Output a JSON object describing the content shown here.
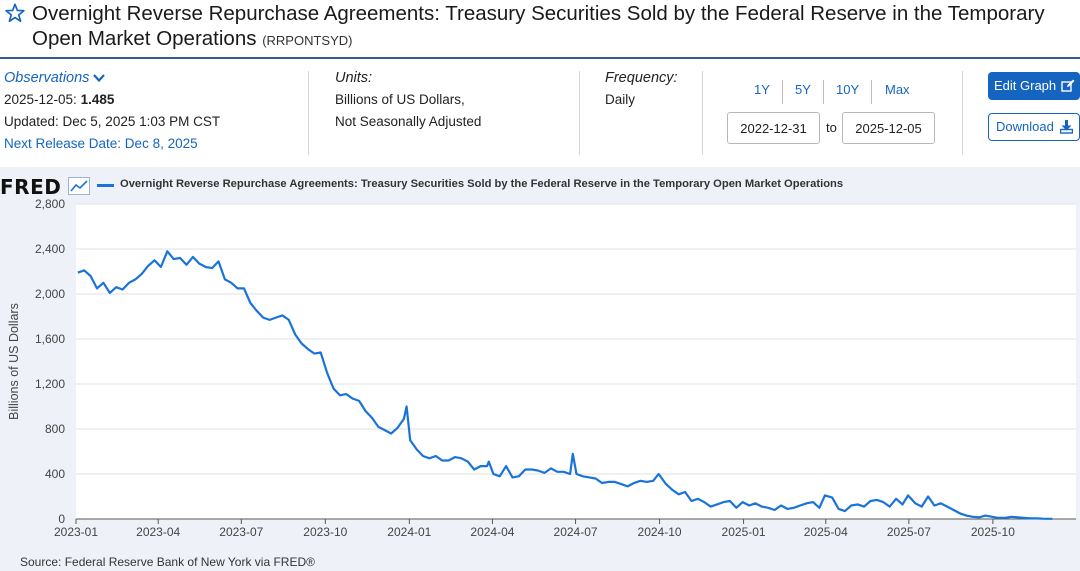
{
  "header": {
    "title": "Overnight Reverse Repurchase Agreements: Treasury Securities Sold by the Federal Reserve in the Temporary Open Market Operations",
    "series_id": "(RRPONTSYD)"
  },
  "observations": {
    "label": "Observations",
    "date": "2025-12-05:",
    "value": "1.485",
    "updated": "Updated: Dec 5, 2025 1:03 PM CST",
    "next_release": "Next Release Date: Dec 8, 2025"
  },
  "units": {
    "label": "Units:",
    "line1": "Billions of US Dollars,",
    "line2": "Not Seasonally Adjusted"
  },
  "frequency": {
    "label": "Frequency:",
    "value": "Daily"
  },
  "range": {
    "buttons": [
      "1Y",
      "5Y",
      "10Y",
      "Max"
    ],
    "start": "2022-12-31",
    "to": "to",
    "end": "2025-12-05"
  },
  "actions": {
    "edit_graph": "Edit Graph",
    "download": "Download"
  },
  "colors": {
    "accent": "#1565c0",
    "series_line": "#1a73d9",
    "plot_bg": "#ffffff",
    "panel_bg": "#eef2f8"
  },
  "logo": "FRED",
  "source": "Source: Federal Reserve Bank of New York via FRED®",
  "chart_data": {
    "type": "line",
    "title": "",
    "legend": "Overnight Reverse Repurchase Agreements: Treasury Securities Sold by the Federal Reserve in the Temporary Open Market Operations",
    "ylabel": "Billions of US Dollars",
    "xlabel": "",
    "ylim": [
      0,
      2800
    ],
    "yticks": [
      0,
      400,
      800,
      1200,
      1600,
      2000,
      2400,
      2800
    ],
    "ytick_labels": [
      "0",
      "400",
      "800",
      "1,200",
      "1,600",
      "2,000",
      "2,400",
      "2,800"
    ],
    "xlim": [
      "2023-01-01",
      "2025-12-31"
    ],
    "xticks": [
      "2023-01",
      "2023-04",
      "2023-07",
      "2023-10",
      "2024-01",
      "2024-04",
      "2024-07",
      "2024-10",
      "2025-01",
      "2025-04",
      "2025-07",
      "2025-10"
    ],
    "grid": true,
    "legend_position": "top",
    "series": [
      {
        "name": "Overnight Reverse Repurchase Agreements: Treasury Securities Sold by the Federal Reserve in the Temporary Open Market Operations",
        "x": [
          "2023-01-03",
          "2023-01-10",
          "2023-01-17",
          "2023-01-24",
          "2023-01-31",
          "2023-02-07",
          "2023-02-14",
          "2023-02-21",
          "2023-02-28",
          "2023-03-07",
          "2023-03-14",
          "2023-03-21",
          "2023-03-28",
          "2023-04-04",
          "2023-04-11",
          "2023-04-18",
          "2023-04-25",
          "2023-05-02",
          "2023-05-09",
          "2023-05-16",
          "2023-05-23",
          "2023-05-30",
          "2023-06-06",
          "2023-06-13",
          "2023-06-20",
          "2023-06-27",
          "2023-07-04",
          "2023-07-11",
          "2023-07-18",
          "2023-07-25",
          "2023-08-01",
          "2023-08-08",
          "2023-08-15",
          "2023-08-22",
          "2023-08-29",
          "2023-09-05",
          "2023-09-12",
          "2023-09-19",
          "2023-09-26",
          "2023-10-03",
          "2023-10-10",
          "2023-10-17",
          "2023-10-24",
          "2023-10-31",
          "2023-11-07",
          "2023-11-14",
          "2023-11-21",
          "2023-11-28",
          "2023-12-05",
          "2023-12-12",
          "2023-12-19",
          "2023-12-26",
          "2023-12-29",
          "2024-01-02",
          "2024-01-09",
          "2024-01-16",
          "2024-01-23",
          "2024-01-30",
          "2024-02-06",
          "2024-02-13",
          "2024-02-20",
          "2024-02-27",
          "2024-03-05",
          "2024-03-12",
          "2024-03-19",
          "2024-03-26",
          "2024-03-28",
          "2024-04-02",
          "2024-04-09",
          "2024-04-16",
          "2024-04-23",
          "2024-04-30",
          "2024-05-07",
          "2024-05-14",
          "2024-05-21",
          "2024-05-28",
          "2024-06-04",
          "2024-06-11",
          "2024-06-18",
          "2024-06-25",
          "2024-06-28",
          "2024-07-02",
          "2024-07-09",
          "2024-07-16",
          "2024-07-23",
          "2024-07-30",
          "2024-08-06",
          "2024-08-13",
          "2024-08-20",
          "2024-08-27",
          "2024-09-03",
          "2024-09-10",
          "2024-09-17",
          "2024-09-24",
          "2024-09-30",
          "2024-10-08",
          "2024-10-15",
          "2024-10-22",
          "2024-10-29",
          "2024-11-05",
          "2024-11-12",
          "2024-11-19",
          "2024-11-26",
          "2024-12-03",
          "2024-12-10",
          "2024-12-17",
          "2024-12-24",
          "2024-12-31",
          "2025-01-07",
          "2025-01-14",
          "2025-01-21",
          "2025-01-28",
          "2025-02-04",
          "2025-02-11",
          "2025-02-18",
          "2025-02-25",
          "2025-03-04",
          "2025-03-11",
          "2025-03-18",
          "2025-03-25",
          "2025-03-31",
          "2025-04-08",
          "2025-04-15",
          "2025-04-22",
          "2025-04-29",
          "2025-05-06",
          "2025-05-13",
          "2025-05-20",
          "2025-05-27",
          "2025-06-03",
          "2025-06-10",
          "2025-06-17",
          "2025-06-24",
          "2025-06-30",
          "2025-07-08",
          "2025-07-15",
          "2025-07-22",
          "2025-07-29",
          "2025-08-05",
          "2025-08-12",
          "2025-08-19",
          "2025-08-26",
          "2025-09-02",
          "2025-09-09",
          "2025-09-16",
          "2025-09-23",
          "2025-09-30",
          "2025-10-07",
          "2025-10-14",
          "2025-10-21",
          "2025-10-28",
          "2025-11-04",
          "2025-11-11",
          "2025-11-18",
          "2025-11-25",
          "2025-12-01",
          "2025-12-05"
        ],
        "y": [
          2190,
          2210,
          2160,
          2050,
          2100,
          2010,
          2060,
          2040,
          2100,
          2130,
          2180,
          2250,
          2300,
          2240,
          2380,
          2310,
          2320,
          2260,
          2330,
          2270,
          2240,
          2230,
          2290,
          2130,
          2100,
          2050,
          2050,
          1920,
          1850,
          1790,
          1770,
          1790,
          1810,
          1770,
          1640,
          1560,
          1510,
          1470,
          1480,
          1300,
          1160,
          1100,
          1110,
          1070,
          1050,
          960,
          900,
          820,
          790,
          760,
          810,
          890,
          1000,
          700,
          620,
          560,
          540,
          560,
          520,
          520,
          550,
          540,
          510,
          440,
          470,
          470,
          510,
          400,
          380,
          470,
          370,
          380,
          440,
          440,
          430,
          410,
          450,
          420,
          420,
          400,
          580,
          400,
          380,
          370,
          360,
          320,
          330,
          330,
          310,
          290,
          320,
          340,
          330,
          340,
          400,
          310,
          260,
          220,
          240,
          160,
          180,
          150,
          110,
          130,
          150,
          160,
          100,
          150,
          120,
          140,
          110,
          100,
          80,
          120,
          90,
          100,
          120,
          140,
          150,
          100,
          210,
          190,
          90,
          70,
          120,
          130,
          110,
          160,
          170,
          150,
          110,
          180,
          130,
          210,
          140,
          110,
          200,
          120,
          140,
          110,
          80,
          50,
          30,
          20,
          15,
          30,
          20,
          10,
          10,
          20,
          15,
          10,
          5,
          5,
          3,
          2,
          1.5
        ]
      }
    ]
  }
}
